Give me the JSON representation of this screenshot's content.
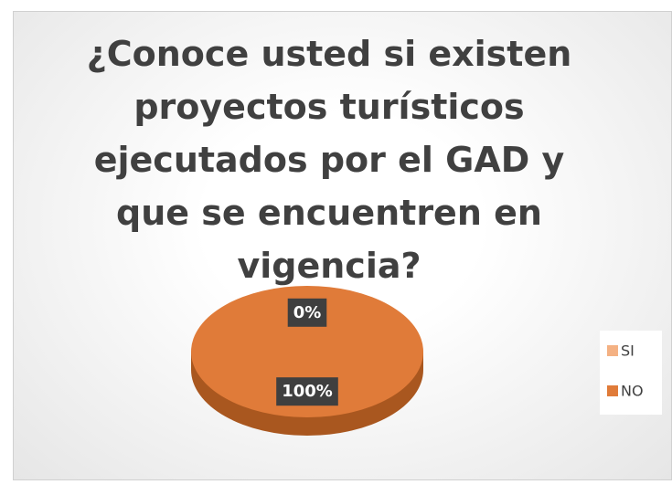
{
  "chart_data": {
    "type": "pie",
    "title": "¿Conoce usted si existen proyectos turísticos ejecutados por el GAD y que se encuentren en vigencia?",
    "categories": [
      "SI",
      "NO"
    ],
    "values": [
      0,
      100
    ],
    "value_labels": [
      "0%",
      "100%"
    ],
    "colors": [
      "#f4b183",
      "#e07b39"
    ],
    "legend": "right"
  }
}
